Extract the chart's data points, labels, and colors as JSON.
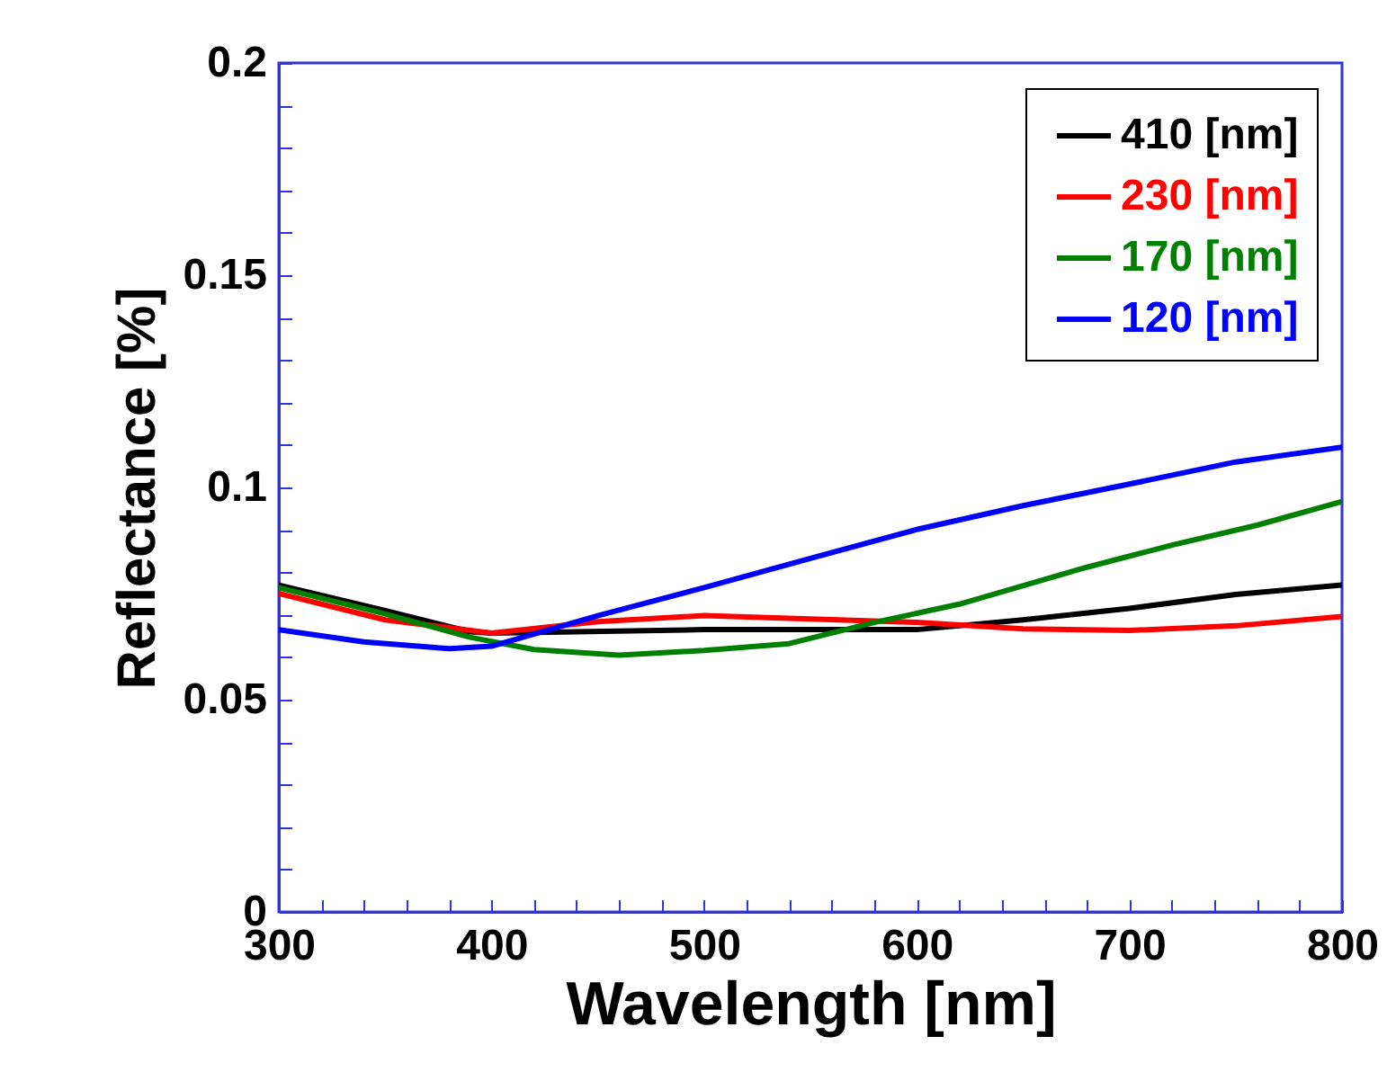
{
  "chart_data": {
    "type": "line",
    "xlabel": "Wavelength [nm]",
    "ylabel": "Reflectance [%]",
    "xlim": [
      300,
      800
    ],
    "ylim": [
      0,
      0.2
    ],
    "xticks": [
      300,
      {
        "value": 320,
        "label": null
      },
      {
        "value": 340,
        "label": null
      },
      {
        "value": 360,
        "label": null
      },
      {
        "value": 380,
        "label": null
      },
      400,
      {
        "value": 420,
        "label": null
      },
      {
        "value": 440,
        "label": null
      },
      {
        "value": 460,
        "label": null
      },
      {
        "value": 480,
        "label": null
      },
      500,
      {
        "value": 520,
        "label": null
      },
      {
        "value": 540,
        "label": null
      },
      {
        "value": 560,
        "label": null
      },
      {
        "value": 580,
        "label": null
      },
      600,
      {
        "value": 620,
        "label": null
      },
      {
        "value": 640,
        "label": null
      },
      {
        "value": 660,
        "label": null
      },
      {
        "value": 680,
        "label": null
      },
      700,
      {
        "value": 720,
        "label": null
      },
      {
        "value": 740,
        "label": null
      },
      {
        "value": 760,
        "label": null
      },
      {
        "value": 780,
        "label": null
      },
      800
    ],
    "yticks": [
      0,
      {
        "value": 0.01,
        "label": null
      },
      {
        "value": 0.02,
        "label": null
      },
      {
        "value": 0.03,
        "label": null
      },
      {
        "value": 0.04,
        "label": null
      },
      0.05,
      {
        "value": 0.06,
        "label": null
      },
      {
        "value": 0.07,
        "label": null
      },
      {
        "value": 0.08,
        "label": null
      },
      {
        "value": 0.09,
        "label": null
      },
      0.1,
      {
        "value": 0.11,
        "label": null
      },
      {
        "value": 0.12,
        "label": null
      },
      {
        "value": 0.13,
        "label": null
      },
      {
        "value": 0.14,
        "label": null
      },
      0.15,
      {
        "value": 0.16,
        "label": null
      },
      {
        "value": 0.17,
        "label": null
      },
      {
        "value": 0.18,
        "label": null
      },
      {
        "value": 0.19,
        "label": null
      },
      0.2
    ],
    "legend": "top right",
    "line_style": "solid",
    "series": [
      {
        "name": "410 [nm]",
        "color": "#000000",
        "x": [
          300,
          350,
          390,
          400,
          500,
          600,
          650,
          700,
          750,
          800
        ],
        "values": [
          0.077,
          0.071,
          0.066,
          0.0657,
          0.0665,
          0.0665,
          0.0688,
          0.0715,
          0.0748,
          0.077
        ]
      },
      {
        "name": "230 [nm]",
        "color": "#ff0000",
        "x": [
          300,
          350,
          400,
          450,
          500,
          550,
          600,
          650,
          700,
          750,
          800
        ],
        "values": [
          0.075,
          0.0688,
          0.0657,
          0.0684,
          0.0698,
          0.069,
          0.0682,
          0.0667,
          0.0663,
          0.0674,
          0.0696
        ]
      },
      {
        "name": "170 [nm]",
        "color": "#008000",
        "x": [
          300,
          350,
          390,
          420,
          460,
          500,
          540,
          580,
          620,
          680,
          720,
          760,
          800
        ],
        "values": [
          0.0764,
          0.0702,
          0.0647,
          0.0618,
          0.0605,
          0.0616,
          0.0632,
          0.0682,
          0.0725,
          0.0812,
          0.0864,
          0.0911,
          0.0967
        ]
      },
      {
        "name": "120 [nm]",
        "color": "#0000ff",
        "x": [
          300,
          340,
          380,
          400,
          450,
          500,
          550,
          600,
          650,
          700,
          750,
          800
        ],
        "values": [
          0.0665,
          0.0636,
          0.062,
          0.0626,
          0.0698,
          0.0764,
          0.0833,
          0.0901,
          0.0957,
          0.1008,
          0.106,
          0.1095
        ]
      }
    ]
  }
}
